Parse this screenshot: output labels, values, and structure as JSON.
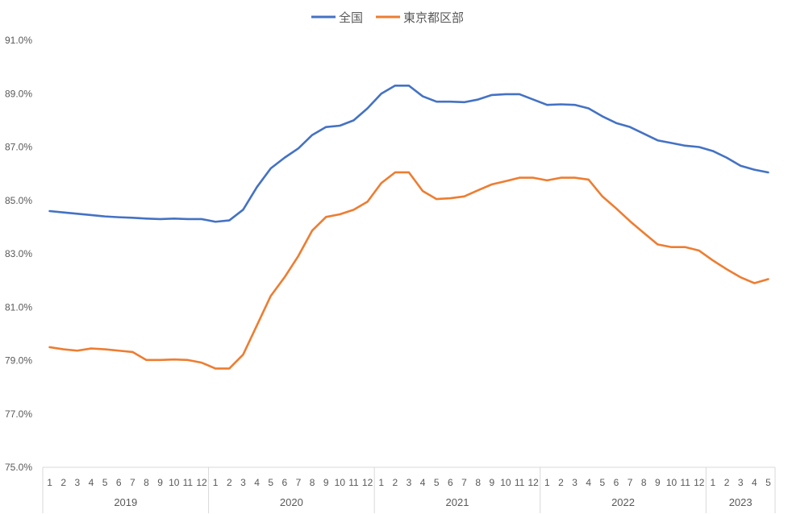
{
  "chart_data": {
    "type": "line",
    "title": "",
    "xlabel": "",
    "ylabel": "",
    "legend_position": "top-center",
    "grid": false,
    "ylim": [
      75.0,
      91.0
    ],
    "yticks": [
      "75.0%",
      "77.0%",
      "79.0%",
      "81.0%",
      "83.0%",
      "85.0%",
      "87.0%",
      "89.0%",
      "91.0%"
    ],
    "years": [
      {
        "label": "2019",
        "months": 12
      },
      {
        "label": "2020",
        "months": 12
      },
      {
        "label": "2021",
        "months": 12
      },
      {
        "label": "2022",
        "months": 12
      },
      {
        "label": "2023",
        "months": 5
      }
    ],
    "x": [
      "1",
      "2",
      "3",
      "4",
      "5",
      "6",
      "7",
      "8",
      "9",
      "10",
      "11",
      "12",
      "1",
      "2",
      "3",
      "4",
      "5",
      "6",
      "7",
      "8",
      "9",
      "10",
      "11",
      "12",
      "1",
      "2",
      "3",
      "4",
      "5",
      "6",
      "7",
      "8",
      "9",
      "10",
      "11",
      "12",
      "1",
      "2",
      "3",
      "4",
      "5",
      "6",
      "7",
      "8",
      "9",
      "10",
      "11",
      "12",
      "1",
      "2",
      "3",
      "4",
      "5"
    ],
    "series": [
      {
        "name": "全国",
        "color": "#4472C4",
        "values": [
          84.6,
          84.55,
          84.5,
          84.45,
          84.4,
          84.37,
          84.35,
          84.32,
          84.3,
          84.32,
          84.3,
          84.3,
          84.2,
          84.25,
          84.65,
          85.5,
          86.2,
          86.6,
          86.95,
          87.45,
          87.75,
          87.8,
          88.0,
          88.45,
          89.0,
          89.3,
          89.3,
          88.9,
          88.7,
          88.7,
          88.68,
          88.78,
          88.95,
          88.98,
          88.98,
          88.78,
          88.58,
          88.6,
          88.58,
          88.45,
          88.15,
          87.9,
          87.75,
          87.5,
          87.25,
          87.15,
          87.05,
          87.0,
          86.85,
          86.6,
          86.3,
          86.15,
          86.05
        ]
      },
      {
        "name": "東京都区部",
        "color": "#ED7D31",
        "values": [
          79.5,
          79.42,
          79.37,
          79.45,
          79.42,
          79.37,
          79.32,
          79.02,
          79.02,
          79.04,
          79.02,
          78.92,
          78.7,
          78.7,
          79.22,
          80.32,
          81.42,
          82.12,
          82.92,
          83.87,
          84.38,
          84.48,
          84.65,
          84.95,
          85.65,
          86.05,
          86.05,
          85.35,
          85.05,
          85.08,
          85.15,
          85.38,
          85.6,
          85.72,
          85.85,
          85.85,
          85.75,
          85.85,
          85.85,
          85.78,
          85.15,
          84.7,
          84.22,
          83.78,
          83.35,
          83.25,
          83.25,
          83.12,
          82.75,
          82.42,
          82.12,
          81.9,
          82.05
        ]
      }
    ]
  }
}
